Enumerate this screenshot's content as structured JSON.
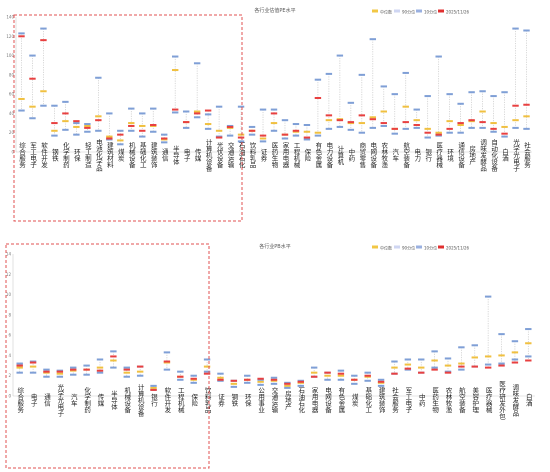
{
  "chart_data": [
    {
      "type": "scatter",
      "title": "各行业估值PE水平",
      "legend": [
        "中位数",
        "90分位",
        "10分位",
        "2025/11/26"
      ],
      "legend_position": "top-right",
      "y_ticks": [
        "0",
        "20",
        "40",
        "60",
        "80",
        "100",
        "120",
        "140"
      ],
      "ylim": [
        0,
        140
      ],
      "grid": false,
      "categories": [
        "综合服务",
        "军工电子",
        "软件开发",
        "钢铁",
        "化学制药",
        "环保",
        "轻工制造",
        "电池化学品",
        "建筑材料",
        "煤炭",
        "机械设备",
        "基础化工",
        "建筑装饰",
        "通信",
        "半导体",
        "电子",
        "传媒",
        "计算机设备",
        "光伏设备",
        "交通运输",
        "石油石化",
        "饮料乳品",
        "证券",
        "医药生物",
        "家用电器",
        "工程机械",
        "保险",
        "有色金属",
        "电力设备",
        "计算机",
        "中药",
        "商贸零售",
        "电网设备",
        "农林牧渔",
        "汽车",
        "航空装备",
        "电力",
        "银行",
        "医疗器械",
        "环境",
        "通信设备",
        "房地产",
        "调味发酵品",
        "自动化设备",
        "白酒",
        "光学光电子",
        "社会服务"
      ],
      "series": [
        {
          "name": "中位数",
          "values": [
            55,
            47,
            63,
            22,
            32,
            26,
            27,
            37,
            16,
            12,
            30,
            27,
            27,
            13,
            85,
            31,
            42,
            29,
            22,
            25,
            18,
            22,
            14,
            30,
            18,
            21,
            21,
            20,
            33,
            34,
            30,
            30,
            36,
            42,
            24,
            47,
            33,
            24,
            20,
            32,
            28,
            32,
            42,
            30,
            26,
            33,
            37
          ]
        },
        {
          "name": "90分位",
          "values": [
            123,
            100,
            128,
            48,
            52,
            30,
            29,
            77,
            40,
            22,
            45,
            40,
            45,
            18,
            99,
            42,
            92,
            39,
            47,
            27,
            47,
            26,
            44,
            44,
            33,
            29,
            28,
            75,
            81,
            100,
            51,
            80,
            117,
            68,
            60,
            82,
            44,
            58,
            99,
            60,
            50,
            62,
            63,
            58,
            62,
            128,
            126
          ]
        },
        {
          "name": "10分位",
          "values": [
            43,
            35,
            48,
            17,
            23,
            18,
            21,
            22,
            13,
            8,
            22,
            16,
            21,
            10,
            41,
            25,
            36,
            24,
            16,
            17,
            11,
            18,
            11,
            22,
            14,
            17,
            13,
            17,
            24,
            26,
            23,
            20,
            25,
            27,
            19,
            24,
            25,
            15,
            17,
            20,
            20,
            25,
            25,
            21,
            16,
            25,
            24
          ]
        },
        {
          "name": "2025/11/26",
          "values": [
            120,
            76,
            116,
            30,
            40,
            32,
            25,
            33,
            14,
            18,
            27,
            22,
            28,
            14,
            44,
            31,
            40,
            43,
            15,
            26,
            15,
            22,
            17,
            40,
            18,
            22,
            15,
            56,
            38,
            33,
            31,
            38,
            34,
            30,
            24,
            31,
            28,
            20,
            18,
            24,
            30,
            33,
            31,
            24,
            19,
            48,
            49
          ]
        }
      ]
    },
    {
      "type": "scatter",
      "title": "各行业PB水平",
      "legend": [
        "中位数",
        "90分位",
        "10分位",
        "2025/11/26"
      ],
      "legend_position": "top-right",
      "y_ticks": [
        "0",
        "2",
        "4",
        "6",
        "8",
        "10",
        "12",
        "14"
      ],
      "ylim": [
        0,
        14
      ],
      "grid": false,
      "categories": [
        "综合服务",
        "电子",
        "通信",
        "光学光电子",
        "汽车",
        "化学制药",
        "传媒",
        "半导体",
        "机械设备",
        "计算机设备",
        "银行",
        "软件开发",
        "工程机械",
        "保险",
        "饮料乳品",
        "证券",
        "钢铁",
        "环保",
        "公用事业",
        "交通运输",
        "房地产",
        "石油石化",
        "家用电器",
        "电网设备",
        "有色金属",
        "煤炭",
        "基础化工",
        "建筑装饰",
        "社会服务",
        "军工电子",
        "中药",
        "医药生物",
        "农林牧渔",
        "航空装备",
        "美容护理",
        "医疗器械",
        "医疗研发外包",
        "调味发酵品",
        "白酒"
      ],
      "series": [
        {
          "name": "中位数",
          "values": [
            2.8,
            2.9,
            2.3,
            2.2,
            2.5,
            2.6,
            2.8,
            3.5,
            2.3,
            2.4,
            0.8,
            3.3,
            1.9,
            1.6,
            2.9,
            1.8,
            1.2,
            1.6,
            1.4,
            1.5,
            1.0,
            1.3,
            2.3,
            2.0,
            2.0,
            1.6,
            1.9,
            1.3,
            2.8,
            3.1,
            2.8,
            3.5,
            3.0,
            3.2,
            3.8,
            3.9,
            4.0,
            4.3,
            5.2
          ]
        },
        {
          "name": "90分位",
          "values": [
            3.2,
            3.4,
            2.6,
            2.5,
            2.8,
            3.0,
            3.6,
            4.4,
            2.8,
            2.9,
            1.0,
            4.3,
            2.4,
            2.0,
            3.6,
            2.2,
            1.5,
            2.0,
            1.6,
            1.8,
            1.3,
            1.5,
            2.8,
            2.3,
            2.5,
            2.0,
            2.3,
            1.6,
            3.4,
            3.6,
            3.6,
            4.4,
            3.7,
            4.8,
            5.0,
            9.8,
            6.1,
            5.4,
            6.6
          ]
        },
        {
          "name": "10分位",
          "values": [
            2.3,
            2.3,
            1.9,
            1.9,
            2.1,
            2.1,
            2.3,
            2.8,
            1.9,
            2.0,
            0.6,
            2.6,
            1.6,
            1.3,
            2.4,
            1.5,
            0.9,
            1.3,
            1.1,
            1.2,
            0.8,
            1.0,
            1.9,
            1.6,
            1.6,
            1.2,
            1.5,
            1.0,
            2.2,
            2.6,
            2.3,
            2.8,
            2.4,
            2.6,
            2.9,
            3.1,
            3.2,
            3.6,
            3.9
          ]
        },
        {
          "name": "2025/11/26",
          "values": [
            3.0,
            3.3,
            2.4,
            2.4,
            2.6,
            2.6,
            2.5,
            3.9,
            2.6,
            2.9,
            0.6,
            3.4,
            1.9,
            1.7,
            2.2,
            1.6,
            1.5,
            1.6,
            1.7,
            1.6,
            1.2,
            1.4,
            1.9,
            2.3,
            2.2,
            1.6,
            2.0,
            1.4,
            2.2,
            2.7,
            2.3,
            2.6,
            2.3,
            2.9,
            2.9,
            2.8,
            3.0,
            3.3,
            3.5
          ]
        }
      ]
    }
  ]
}
